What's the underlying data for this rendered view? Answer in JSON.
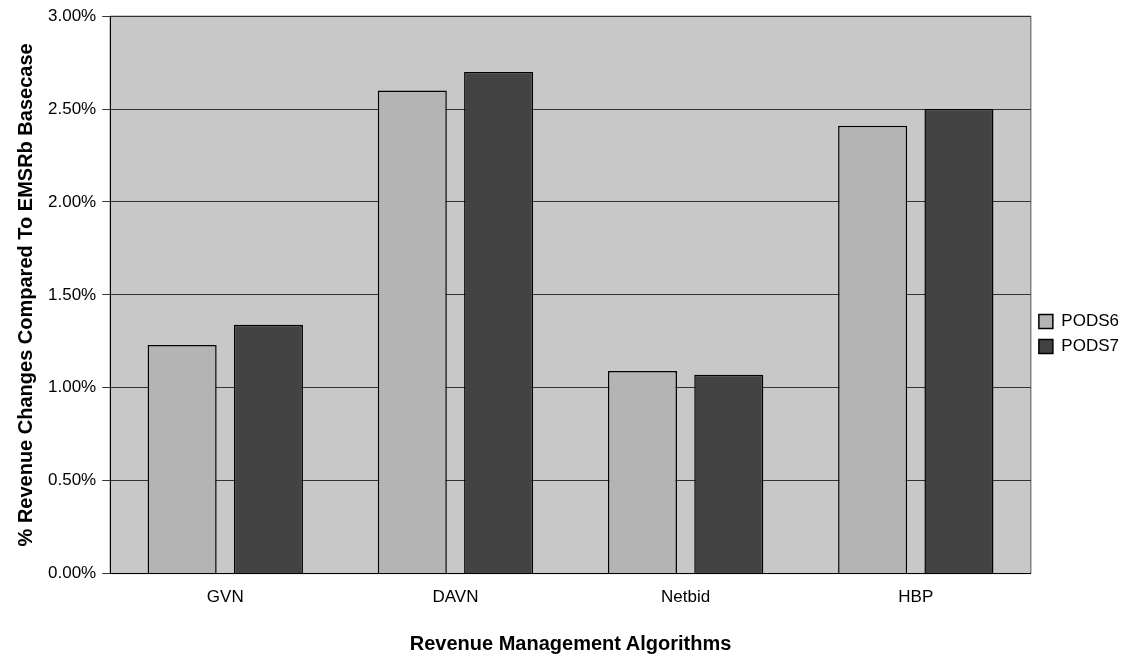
{
  "chart_data": {
    "type": "bar",
    "xlabel": "Revenue Management Algorithms",
    "ylabel": "% Revenue Changes Compared To EMSRb Basecase",
    "categories": [
      "GVN",
      "DAVN",
      "Netbid",
      "HBP"
    ],
    "series": [
      {
        "name": "PODS6",
        "color": "#b4b4b4",
        "values": [
          0.0123,
          0.026,
          0.0109,
          0.0241
        ]
      },
      {
        "name": "PODS7",
        "color": "#434343",
        "values": [
          0.0134,
          0.027,
          0.0107,
          0.025
        ]
      }
    ],
    "ylim": [
      0,
      0.03
    ],
    "yticks": [
      {
        "value": 0,
        "label": "0.00%"
      },
      {
        "value": 0.005,
        "label": "0.50%"
      },
      {
        "value": 0.01,
        "label": "1.00%"
      },
      {
        "value": 0.015,
        "label": "1.50%"
      },
      {
        "value": 0.02,
        "label": "2.00%"
      },
      {
        "value": 0.025,
        "label": "2.50%"
      },
      {
        "value": 0.03,
        "label": "3.00%"
      }
    ],
    "grid": "y",
    "legend": "right"
  }
}
